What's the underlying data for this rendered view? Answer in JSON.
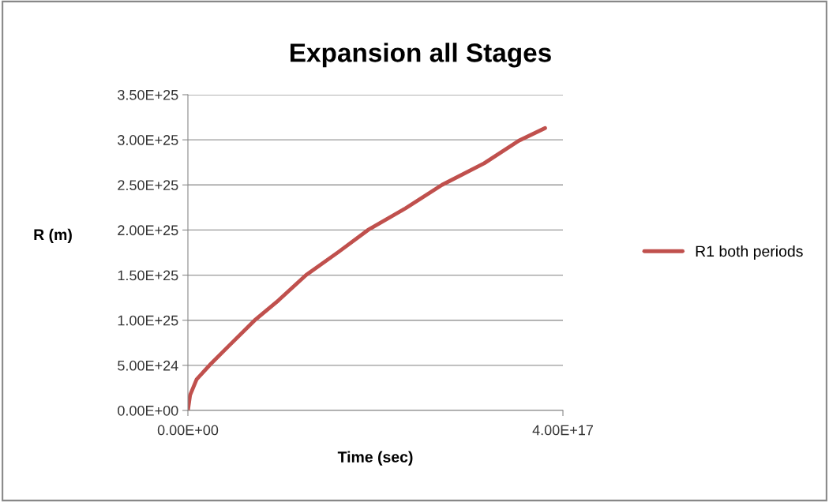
{
  "chart_data": {
    "type": "line",
    "title": "Expansion all Stages",
    "xlabel": "Time (sec)",
    "ylabel": "R (m)",
    "series": [
      {
        "name": "R1 both periods",
        "color": "#c0504d",
        "x": [
          0,
          2300000000000000.0,
          9300000000000000.0,
          2.34e+16,
          4.31e+16,
          7.13e+16,
          9.66e+16,
          1.26e+17,
          1.61e+17,
          1.92e+17,
          2.32e+17,
          2.71e+17,
          3.16e+17,
          3.53e+17,
          3.81e+17
        ],
        "values": [
          0,
          1.69e+24,
          3.45e+24,
          5.05e+24,
          7.1e+24,
          1e+25,
          1.22e+25,
          1.5e+25,
          1.76e+25,
          2e+25,
          2.24e+25,
          2.5e+25,
          2.74e+25,
          2.99e+25,
          3.13e+25
        ]
      }
    ],
    "xlim": [
      0,
      4e+17
    ],
    "xticks": [
      {
        "value": 0,
        "label": "0.00E+00"
      },
      {
        "value": 4e+17,
        "label": "4.00E+17"
      }
    ],
    "ylim": [
      0,
      3.5e+25
    ],
    "yticks": [
      {
        "value": 0,
        "label": "0.00E+00"
      },
      {
        "value": 5e+24,
        "label": "5.00E+24"
      },
      {
        "value": 1e+25,
        "label": "1.00E+25"
      },
      {
        "value": 1.5e+25,
        "label": "1.50E+25"
      },
      {
        "value": 2e+25,
        "label": "2.00E+25"
      },
      {
        "value": 2.5e+25,
        "label": "2.50E+25"
      },
      {
        "value": 3e+25,
        "label": "3.00E+25"
      },
      {
        "value": 3.5e+25,
        "label": "3.50E+25"
      }
    ],
    "grid": "y",
    "legend": "right",
    "marker": "none",
    "line_style": "solid"
  }
}
